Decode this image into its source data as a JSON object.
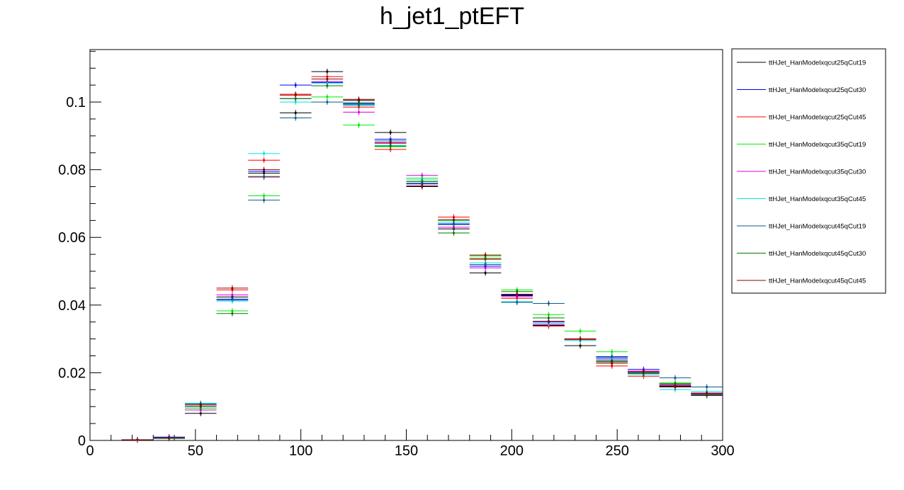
{
  "chart_data": {
    "type": "scatter",
    "title": "h_jet1_ptEFT",
    "xlabel": "",
    "ylabel": "",
    "xlim": [
      0,
      300
    ],
    "ylim": [
      0,
      0.1155
    ],
    "x_ticks": [
      0,
      50,
      100,
      150,
      200,
      250,
      300
    ],
    "x_tick_labels": [
      "0",
      "50",
      "100",
      "150",
      "200",
      "250",
      "300"
    ],
    "y_ticks": [
      0,
      0.02,
      0.04,
      0.06,
      0.08,
      0.1
    ],
    "y_tick_labels": [
      "0",
      "0.02",
      "0.04",
      "0.06",
      "0.08",
      "0.1"
    ],
    "bin_width": 15,
    "x": [
      22.5,
      37.5,
      52.5,
      67.5,
      82.5,
      97.5,
      112.5,
      127.5,
      142.5,
      157.5,
      172.5,
      187.5,
      202.5,
      217.5,
      232.5,
      247.5,
      262.5,
      277.5,
      292.5
    ],
    "grid": false,
    "legend_position": "right",
    "series": [
      {
        "name": "ttHJet_HanModelxqcut25qCut19",
        "color": "#000000",
        "values": [
          0.0002,
          0.0008,
          0.008,
          0.0424,
          0.079,
          0.0968,
          0.109,
          0.1005,
          0.091,
          0.075,
          0.0625,
          0.0495,
          0.0428,
          0.034,
          0.028,
          0.0235,
          0.02,
          0.016,
          0.0133
        ]
      },
      {
        "name": "ttHJet_HanModelxqcut25qCut30",
        "color": "#0000ff",
        "values": [
          0.0002,
          0.001,
          0.01,
          0.0415,
          0.0795,
          0.105,
          0.1058,
          0.0995,
          0.089,
          0.0758,
          0.064,
          0.0515,
          0.043,
          0.035,
          0.0295,
          0.0245,
          0.021,
          0.0163,
          0.0138
        ]
      },
      {
        "name": "ttHJet_HanModelxqcut25qCut45",
        "color": "#ff0000",
        "values": [
          0.0002,
          0.0008,
          0.0105,
          0.0445,
          0.0828,
          0.102,
          0.1075,
          0.0985,
          0.086,
          0.0765,
          0.066,
          0.0535,
          0.042,
          0.0338,
          0.0298,
          0.022,
          0.019,
          0.0165,
          0.014
        ]
      },
      {
        "name": "ttHJet_HanModelxqcut35qCut19",
        "color": "#00ee00",
        "values": [
          0.0002,
          0.0006,
          0.0095,
          0.0383,
          0.0723,
          0.101,
          0.1015,
          0.0932,
          0.0868,
          0.0775,
          0.065,
          0.0545,
          0.0445,
          0.0372,
          0.0323,
          0.0262,
          0.0205,
          0.017,
          0.014
        ]
      },
      {
        "name": "ttHJet_HanModelxqcut35qCut30",
        "color": "#dd00dd",
        "values": [
          0.0002,
          0.0007,
          0.009,
          0.043,
          0.0778,
          0.101,
          0.106,
          0.097,
          0.0878,
          0.0783,
          0.063,
          0.051,
          0.0425,
          0.0343,
          0.03,
          0.024,
          0.0205,
          0.0158,
          0.0137
        ]
      },
      {
        "name": "ttHJet_HanModelxqcut35qCut45",
        "color": "#00e5e5",
        "values": [
          0.0002,
          0.0008,
          0.011,
          0.0412,
          0.0848,
          0.1,
          0.1055,
          0.099,
          0.0872,
          0.077,
          0.0645,
          0.0525,
          0.041,
          0.0345,
          0.0295,
          0.0242,
          0.0195,
          0.015,
          0.0145
        ]
      },
      {
        "name": "ttHJet_HanModelxqcut45qCut19",
        "color": "#0b5a8c",
        "values": [
          0.0002,
          0.0006,
          0.0108,
          0.0418,
          0.071,
          0.0953,
          0.1,
          0.0992,
          0.0885,
          0.076,
          0.0638,
          0.052,
          0.0408,
          0.0405,
          0.03,
          0.0248,
          0.02,
          0.0185,
          0.0158
        ]
      },
      {
        "name": "ttHJet_HanModelxqcut45qCut30",
        "color": "#007a00",
        "values": [
          0.0002,
          0.0007,
          0.01,
          0.0375,
          0.078,
          0.101,
          0.1048,
          0.0998,
          0.087,
          0.0765,
          0.0613,
          0.0538,
          0.044,
          0.0362,
          0.03,
          0.0232,
          0.0198,
          0.0168,
          0.0135
        ]
      },
      {
        "name": "ttHJet_HanModelxqcut45qCut45",
        "color": "#8b0000",
        "values": [
          0.0002,
          0.0008,
          0.0105,
          0.045,
          0.08,
          0.1023,
          0.1068,
          0.1008,
          0.088,
          0.0752,
          0.0652,
          0.0548,
          0.0432,
          0.0352,
          0.03,
          0.0228,
          0.0203,
          0.0158,
          0.014
        ]
      }
    ]
  }
}
